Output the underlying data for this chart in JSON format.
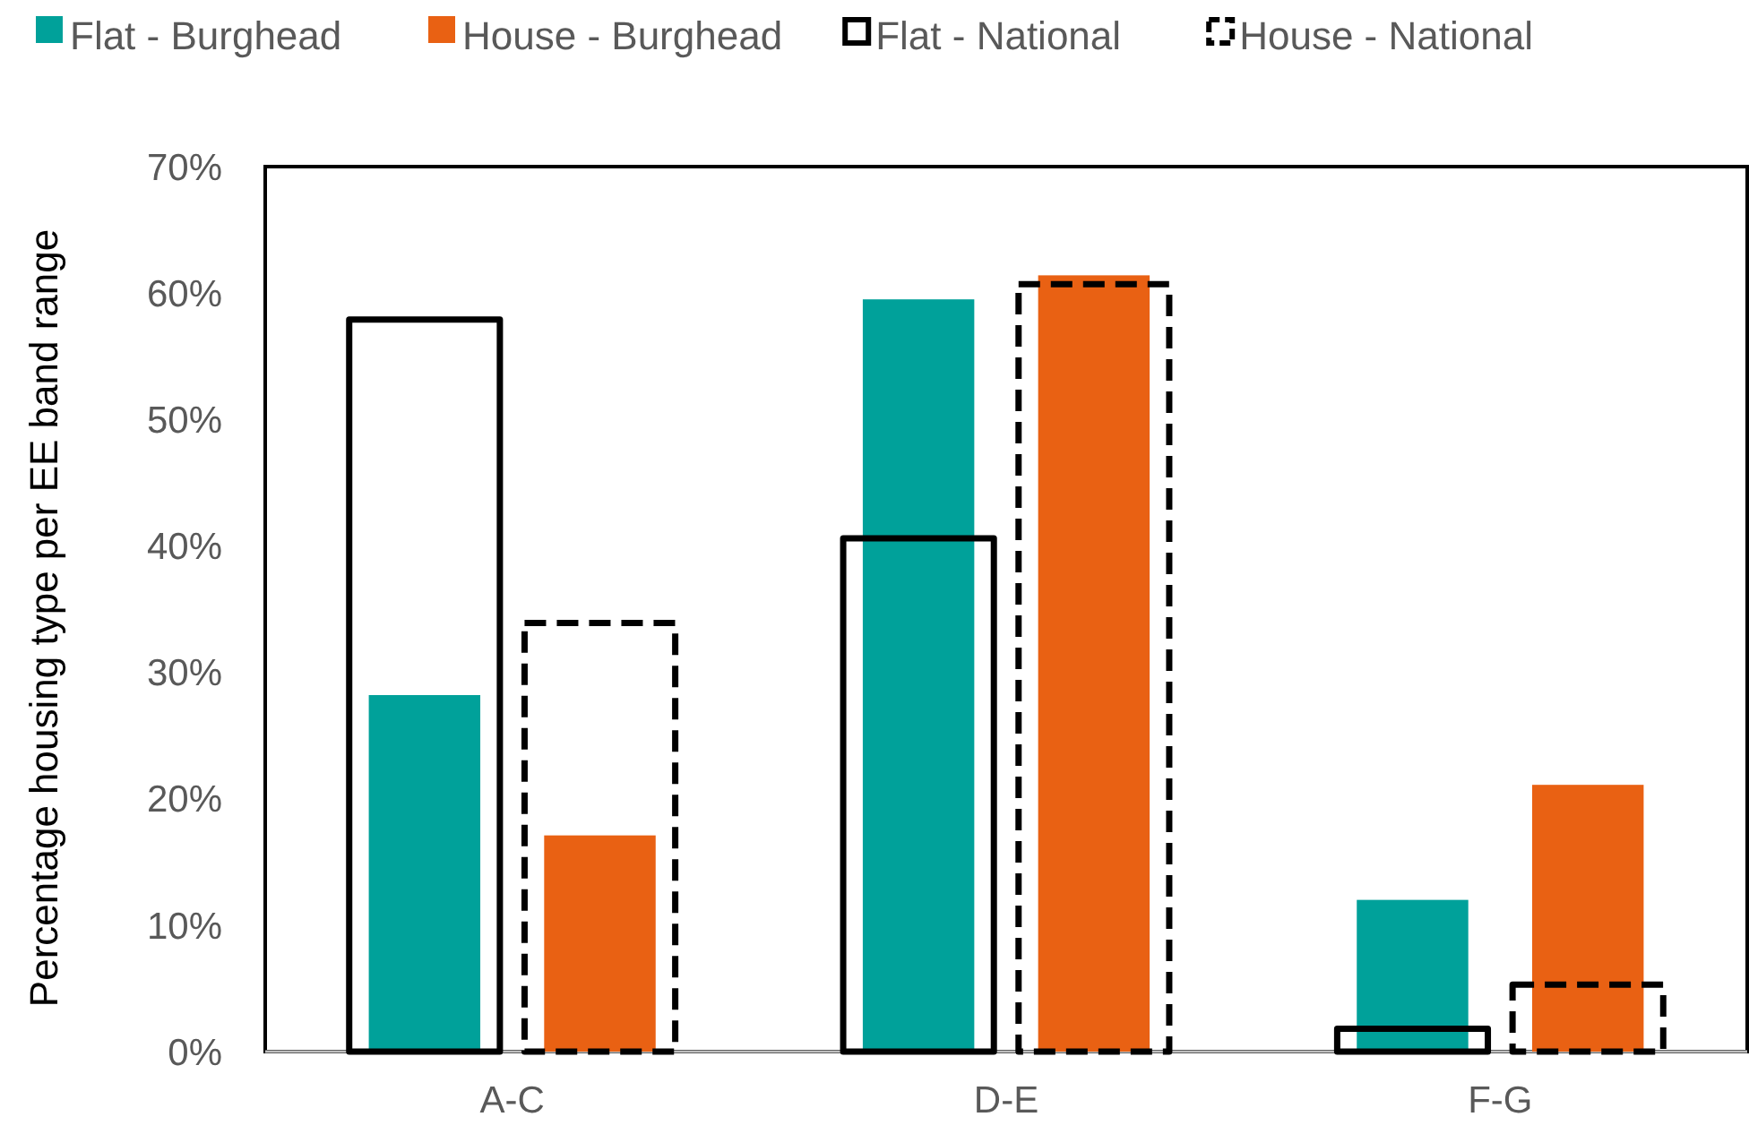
{
  "chart_data": {
    "type": "bar",
    "ylabel": "Percentage housing type per EE band range",
    "categories": [
      "A-C",
      "D-E",
      "F-G"
    ],
    "series": [
      {
        "name": "Flat - Burghead",
        "color": "#00a19a",
        "values": [
          28.2,
          59.5,
          12.0
        ]
      },
      {
        "name": "House - Burghead",
        "color": "#e96113",
        "values": [
          17.1,
          61.4,
          21.1
        ]
      },
      {
        "name": "Flat - National",
        "color": "#000000",
        "line_style": "solid",
        "values": [
          57.9,
          40.6,
          1.8
        ]
      },
      {
        "name": "House - National",
        "color": "#000000",
        "line_style": "dashed",
        "values": [
          33.9,
          60.7,
          5.3
        ]
      }
    ],
    "ylim": [
      0,
      70
    ],
    "yticks": [
      {
        "value": 0,
        "label": "0%"
      },
      {
        "value": 10,
        "label": "10%"
      },
      {
        "value": 20,
        "label": "20%"
      },
      {
        "value": 30,
        "label": "30%"
      },
      {
        "value": 40,
        "label": "40%"
      },
      {
        "value": 50,
        "label": "50%"
      },
      {
        "value": 60,
        "label": "60%"
      },
      {
        "value": 70,
        "label": "70%"
      }
    ],
    "legend": "top",
    "grid": false
  }
}
